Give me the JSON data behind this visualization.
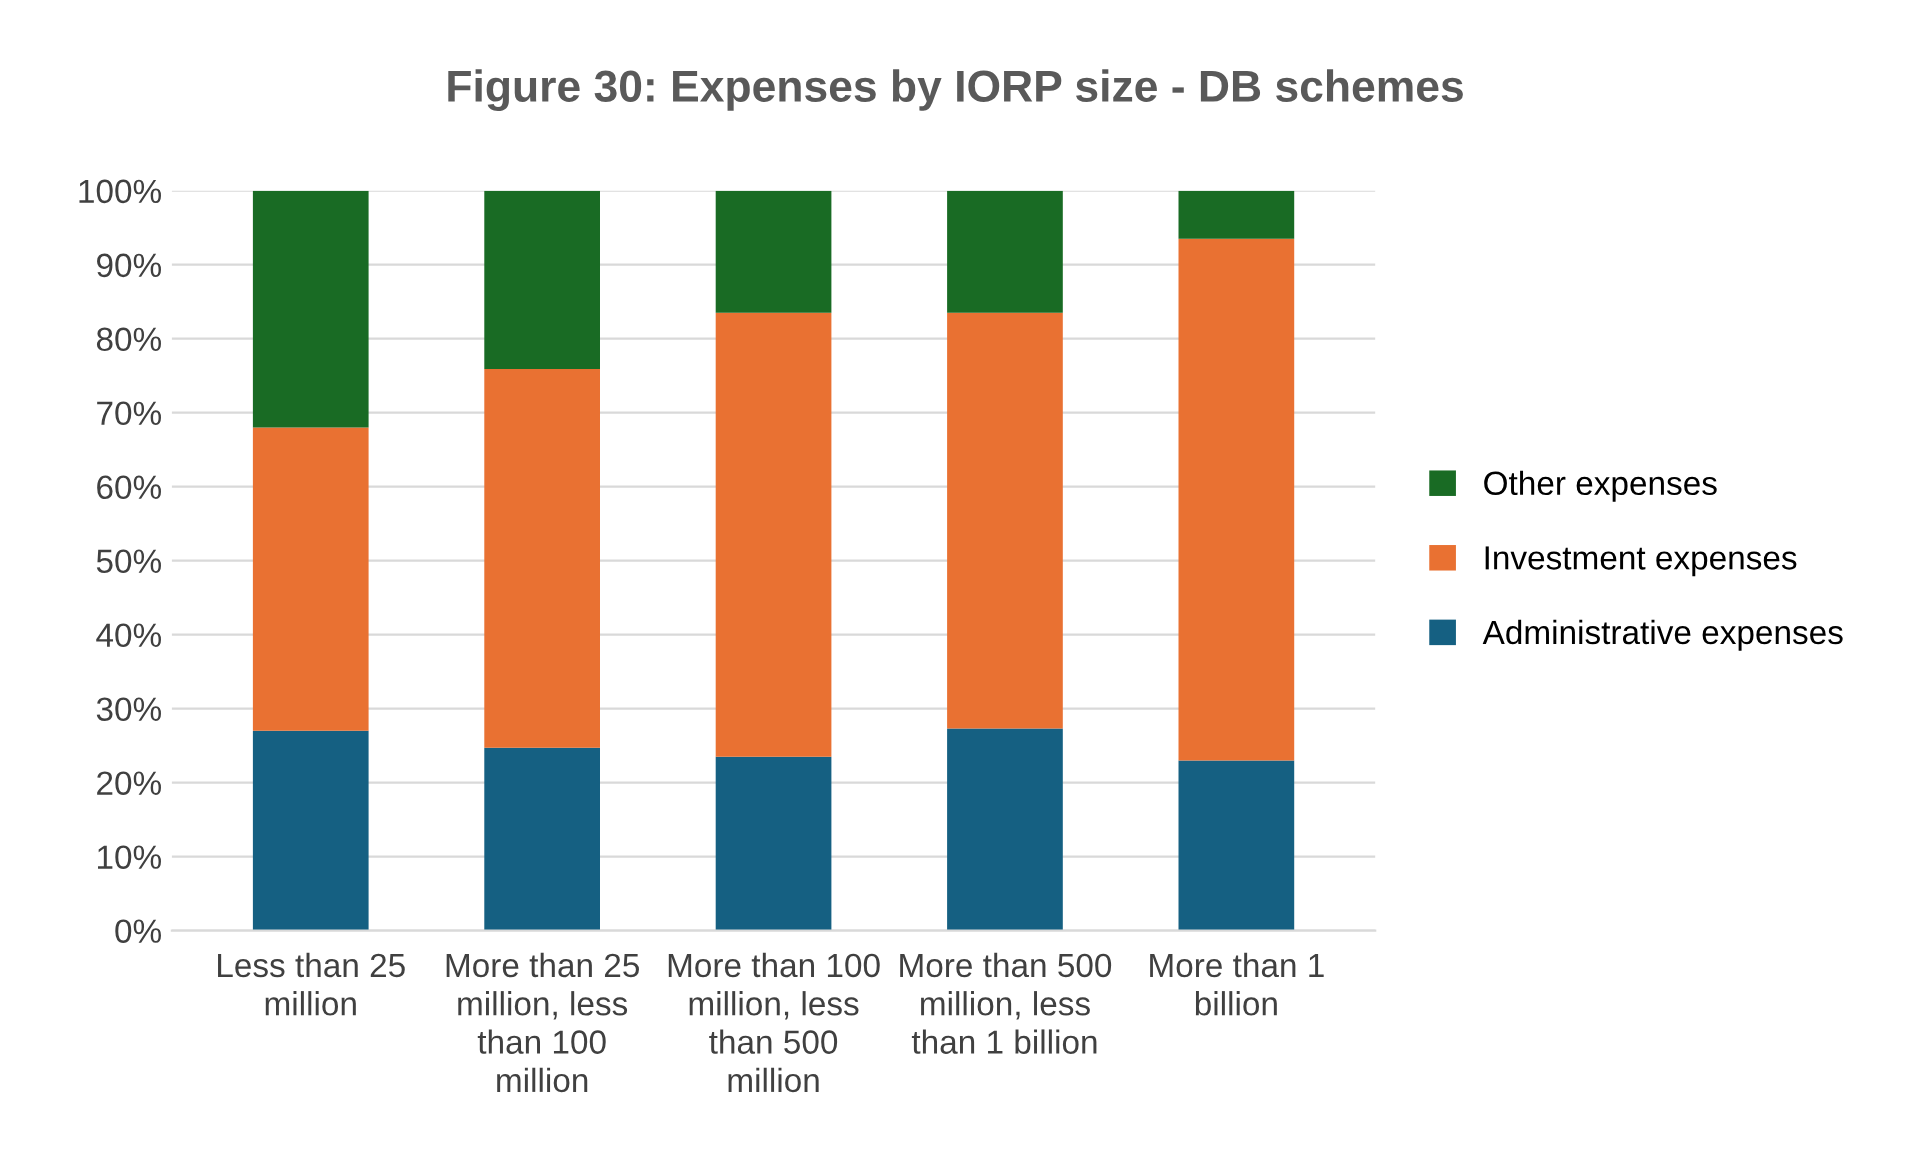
{
  "chart_data": {
    "type": "bar",
    "title": "Figure 30: Expenses by IORP size - DB schemes",
    "stacked": true,
    "categories": [
      "Less than 25 million",
      "More than 25 million, less than 100 million",
      "More than 100 million, less than 500 million",
      "More than 500 million, less than 1 billion",
      "More than 1 billion"
    ],
    "series": [
      {
        "name": "Administrative expenses",
        "color": "#156082",
        "values": [
          27,
          24.7,
          23.5,
          27.3,
          23
        ]
      },
      {
        "name": "Investment expenses",
        "color": "#e97132",
        "values": [
          41,
          51.2,
          60,
          56.2,
          70.5
        ]
      },
      {
        "name": "Other expenses",
        "color": "#196b24",
        "values": [
          32,
          24.1,
          16.5,
          16.5,
          6.5
        ]
      }
    ],
    "ylim": [
      0,
      100
    ],
    "yticks": [
      {
        "value": 0,
        "label": "0%"
      },
      {
        "value": 10,
        "label": "10%"
      },
      {
        "value": 20,
        "label": "20%"
      },
      {
        "value": 30,
        "label": "30%"
      },
      {
        "value": 40,
        "label": "40%"
      },
      {
        "value": 50,
        "label": "50%"
      },
      {
        "value": 60,
        "label": "60%"
      },
      {
        "value": 70,
        "label": "70%"
      },
      {
        "value": 80,
        "label": "80%"
      },
      {
        "value": 90,
        "label": "90%"
      },
      {
        "value": 100,
        "label": "100%"
      }
    ],
    "grid": "y",
    "legend": "right"
  }
}
